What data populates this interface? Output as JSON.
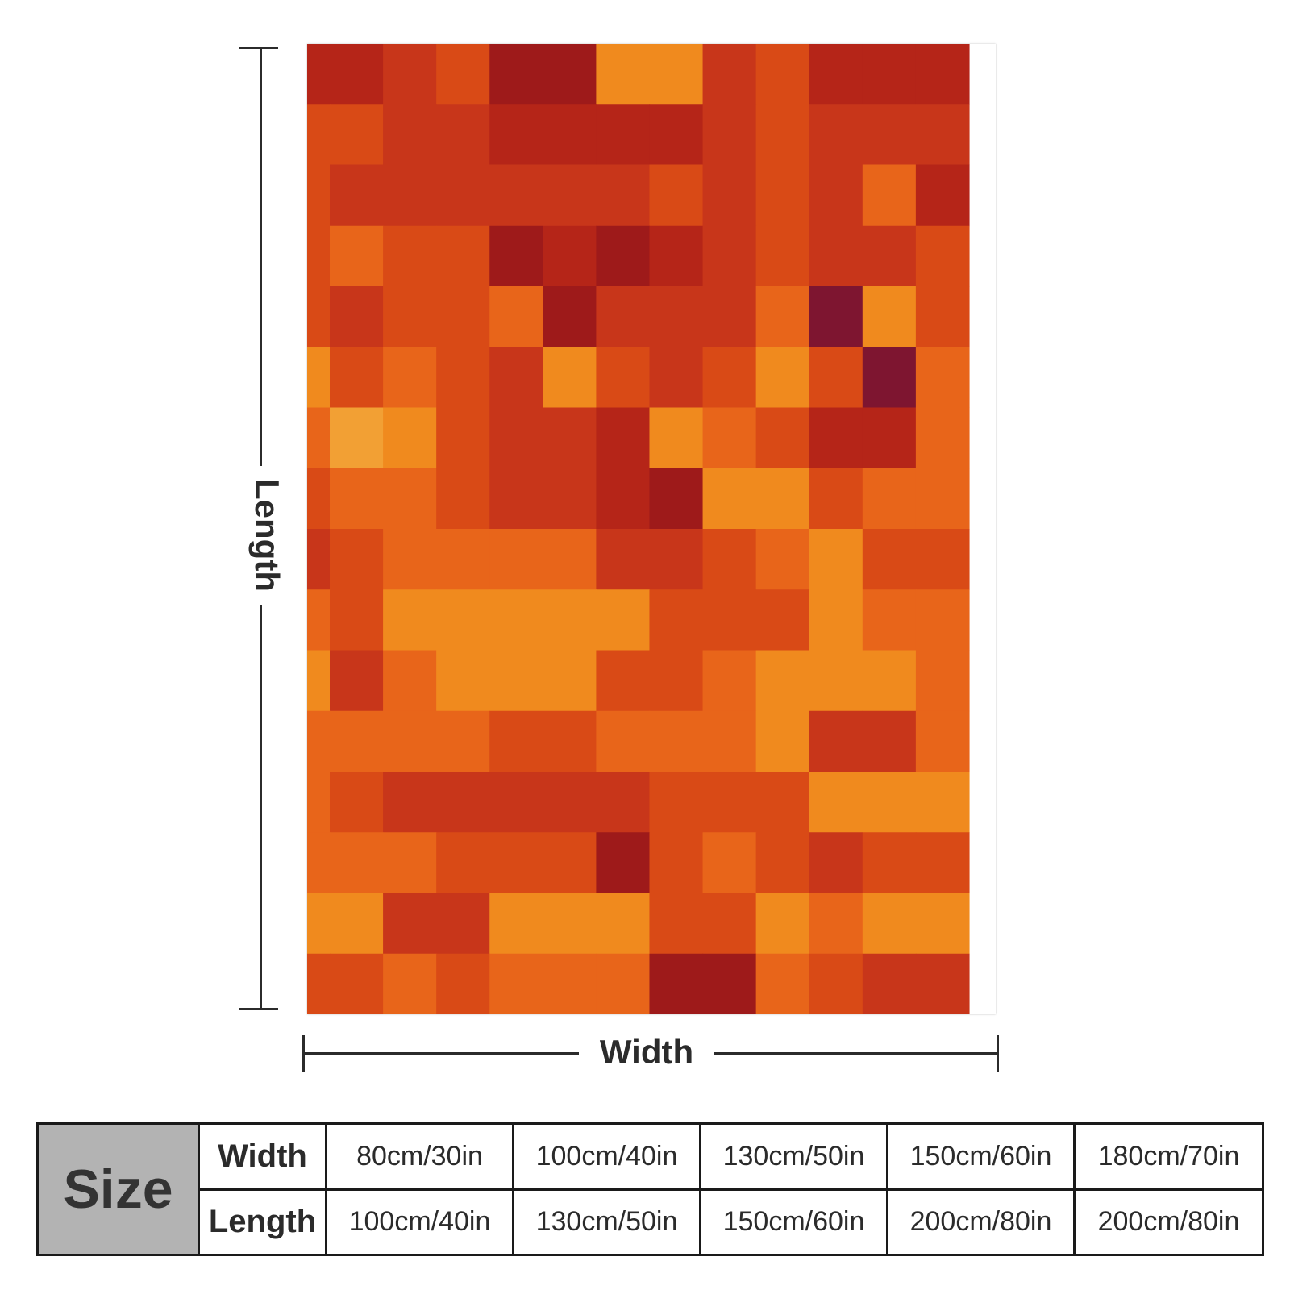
{
  "labels": {
    "length": "Length",
    "width": "Width"
  },
  "size_table": {
    "header": "Size",
    "rows": [
      {
        "label": "Width",
        "values": [
          "80cm/30in",
          "100cm/40in",
          "130cm/50in",
          "150cm/60in",
          "180cm/70in"
        ]
      },
      {
        "label": "Length",
        "values": [
          "100cm/40in",
          "130cm/50in",
          "150cm/60in",
          "200cm/80in",
          "200cm/80in"
        ]
      }
    ]
  },
  "palette": [
    "#f08a1e",
    "#e8651a",
    "#d94a16",
    "#c8361a",
    "#b52518",
    "#9e1a1a",
    "#7e1530",
    "#f2a034"
  ],
  "pattern": [
    "4432550032444",
    "2233444432333",
    "2333333232314",
    "2122545432332",
    "2322153331602",
    "0212302320261",
    "1702334012441",
    "2112334500211",
    "3211113321022",
    "1200000222011",
    "0310002210001",
    "1111221110331",
    "1233333222000",
    "1112225212322",
    "0033000220100",
    "2212111551233"
  ]
}
